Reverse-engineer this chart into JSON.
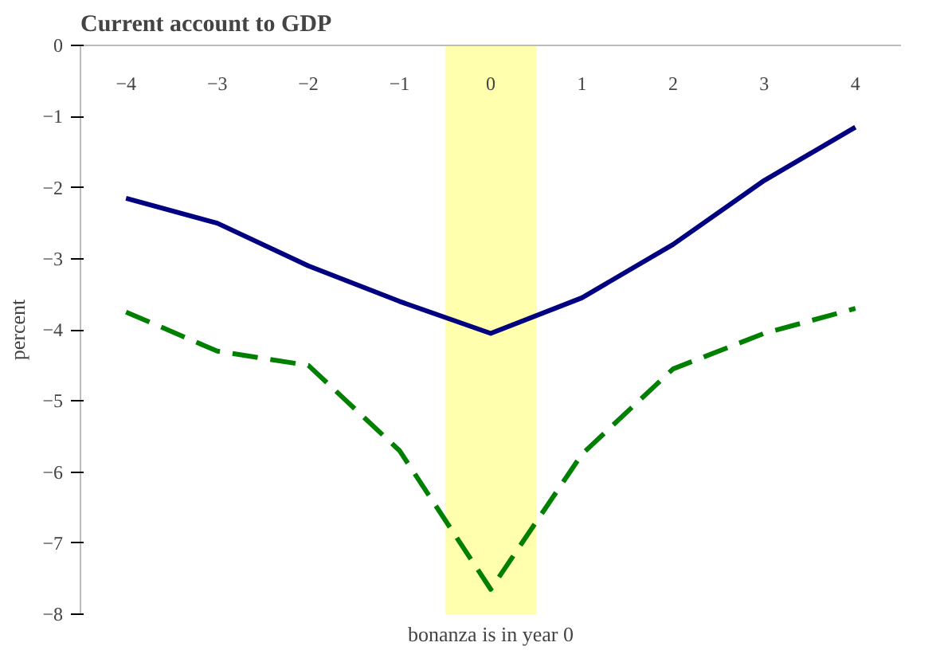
{
  "chart_data": {
    "type": "line",
    "title": "Current account to GDP",
    "xlabel": "bonanza is in year 0",
    "ylabel": "percent",
    "x": [
      -4,
      -3,
      -2,
      -1,
      0,
      1,
      2,
      3,
      4
    ],
    "xlim": [
      -4.5,
      4.5
    ],
    "xticks": [
      -4,
      -3,
      -2,
      -1,
      0,
      1,
      2,
      3,
      4
    ],
    "ylim": [
      -8,
      0
    ],
    "yticks": [
      -8,
      -7,
      -6,
      -5,
      -4,
      -3,
      -2,
      -1,
      0
    ],
    "series": [
      {
        "color": "#000080",
        "line_style": "solid",
        "values": [
          -2.15,
          -2.5,
          -3.1,
          -3.6,
          -4.05,
          -3.55,
          -2.8,
          -1.9,
          -1.15
        ]
      },
      {
        "color": "#008000",
        "line_style": "dashed",
        "values": [
          -3.75,
          -4.3,
          -4.5,
          -5.7,
          -7.65,
          -5.75,
          -4.55,
          -4.05,
          -3.7
        ]
      }
    ],
    "bands": [
      {
        "axis": "x",
        "from": -0.5,
        "to": 0.5,
        "color": "#ffff99"
      }
    ],
    "grid": false
  }
}
